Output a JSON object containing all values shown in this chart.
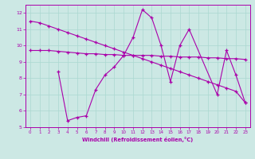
{
  "xlabel": "Windchill (Refroidissement éolien,°C)",
  "xlim": [
    -0.5,
    23.5
  ],
  "ylim": [
    5,
    12.5
  ],
  "yticks": [
    5,
    6,
    7,
    8,
    9,
    10,
    11,
    12
  ],
  "bg_color": "#cce8e4",
  "line_color": "#aa00aa",
  "grid_color": "#aad8d0",
  "line1_x": [
    0,
    1,
    2,
    3,
    4,
    5,
    6,
    7,
    8,
    9,
    10,
    11,
    12,
    13,
    14,
    15,
    16,
    17,
    18,
    19,
    20,
    21,
    22,
    23
  ],
  "line1_y": [
    11.5,
    11.4,
    11.2,
    11.0,
    10.8,
    10.6,
    10.4,
    10.2,
    10.0,
    9.8,
    9.6,
    9.4,
    9.2,
    9.0,
    8.8,
    8.6,
    8.4,
    8.2,
    8.0,
    7.8,
    7.6,
    7.4,
    7.2,
    6.5
  ],
  "line2_x": [
    0,
    1,
    2,
    3,
    4,
    5,
    6,
    7,
    8,
    9,
    10,
    11,
    12,
    13,
    14,
    15,
    16,
    17,
    18,
    19,
    20,
    21,
    22,
    23
  ],
  "line2_y": [
    9.7,
    9.7,
    9.7,
    9.65,
    9.6,
    9.55,
    9.5,
    9.5,
    9.45,
    9.45,
    9.4,
    9.4,
    9.4,
    9.4,
    9.35,
    9.35,
    9.3,
    9.3,
    9.3,
    9.25,
    9.25,
    9.2,
    9.2,
    9.15
  ],
  "line3_x": [
    3,
    4,
    5,
    6,
    7,
    8,
    9,
    10,
    11,
    12,
    13,
    14,
    15,
    16,
    17,
    20,
    21,
    22,
    23
  ],
  "line3_y": [
    8.4,
    5.4,
    5.6,
    5.7,
    7.3,
    8.2,
    8.7,
    9.4,
    10.5,
    12.2,
    11.7,
    10.0,
    7.8,
    10.0,
    11.0,
    7.0,
    9.7,
    8.2,
    6.5
  ]
}
